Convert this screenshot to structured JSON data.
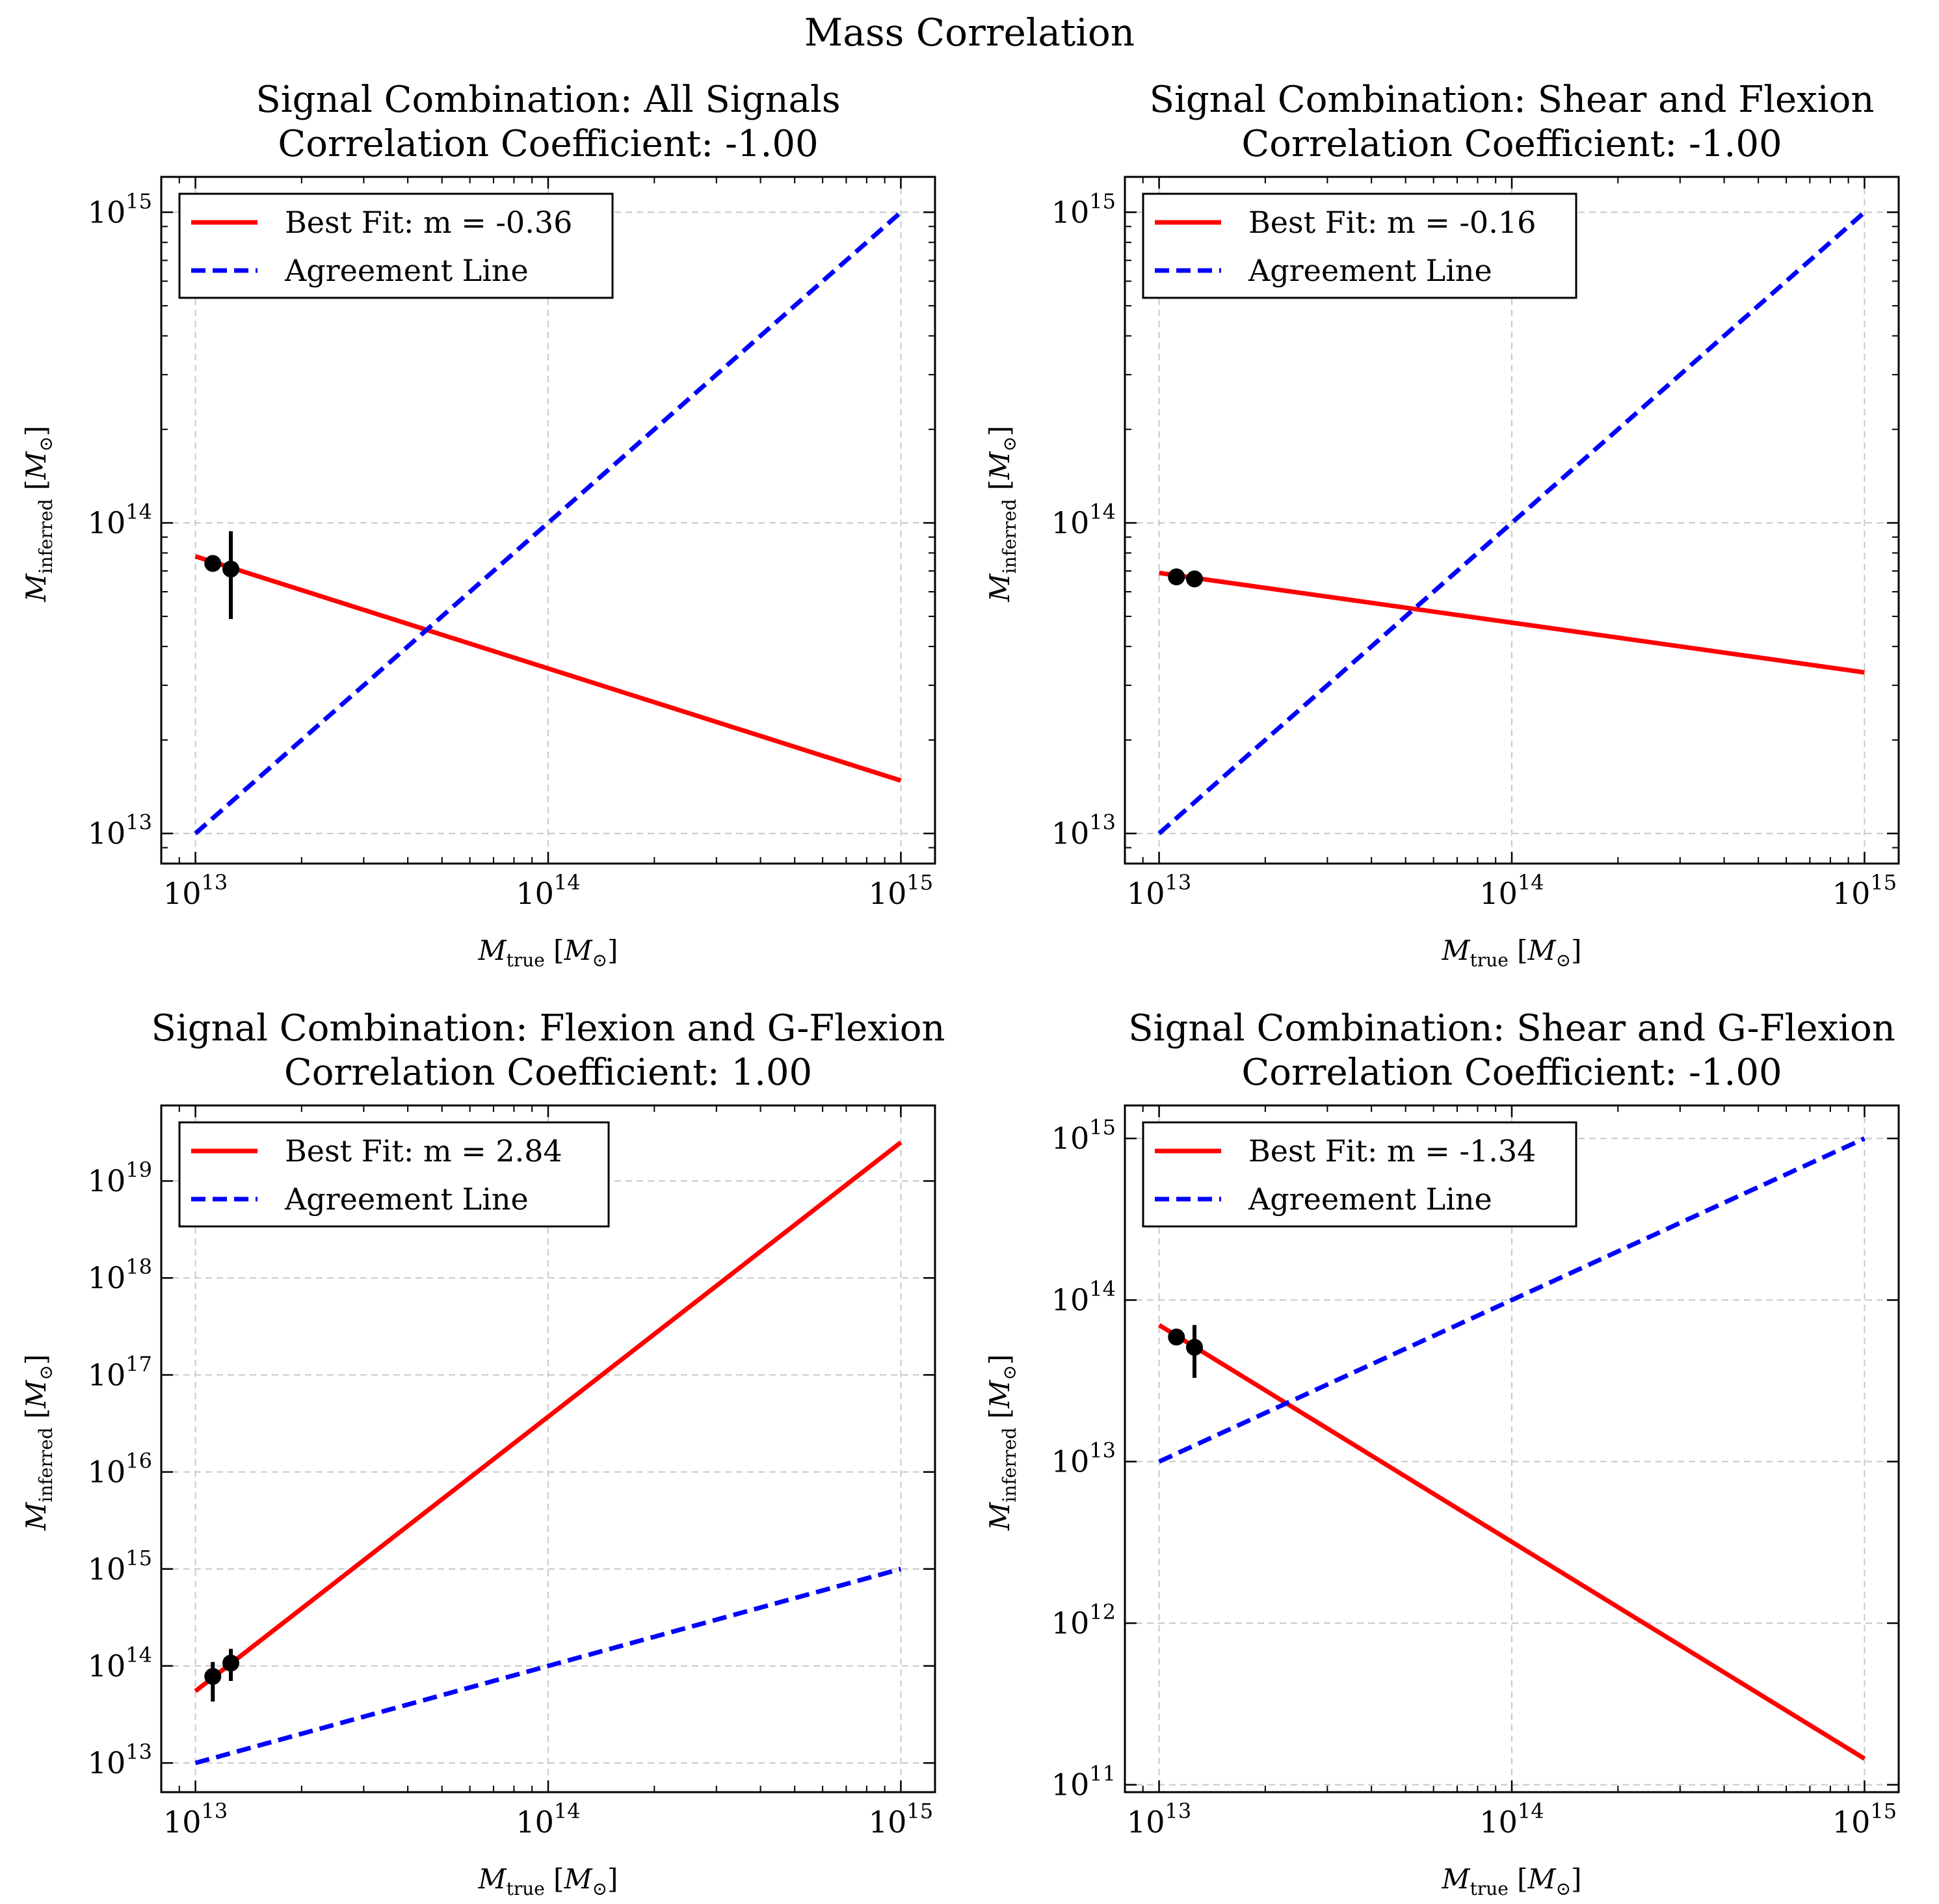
{
  "figure": {
    "suptitle": "Mass Correlation"
  },
  "chart_data": [
    {
      "type": "scatter",
      "title_line1": "Signal Combination: All Signals",
      "title_line2": "Correlation Coefficient: -1.00",
      "xlabel_sym": "M",
      "xlabel_sub": "true",
      "ylabel_sym": "M",
      "ylabel_sub": "inferred",
      "unit_open": " [",
      "unit_sym": "M",
      "unit_sub": "⊙",
      "unit_close": "]",
      "xscale": "log",
      "yscale": "log",
      "xlim": [
        8000000000000.0,
        1250000000000000.0
      ],
      "ylim": [
        8000000000000.0,
        1300000000000000.0
      ],
      "xticks": [
        13,
        14,
        15
      ],
      "yticks": [
        13,
        14,
        15
      ],
      "grid": true,
      "legend_loc": "upper left",
      "series": [
        {
          "name": "Best Fit: m = -0.36",
          "kind": "line",
          "color": "#ff0000",
          "style": "solid",
          "x": [
            10000000000000.0,
            1000000000000000.0
          ],
          "y": [
            78000000000000.0,
            14800000000000.0
          ]
        },
        {
          "name": "Agreement Line",
          "kind": "line",
          "color": "#0000ff",
          "style": "dashed",
          "x": [
            10000000000000.0,
            1000000000000000.0
          ],
          "y": [
            10000000000000.0,
            1000000000000000.0
          ]
        }
      ],
      "points": [
        {
          "x": 11200000000000.0,
          "y": 74000000000000.0,
          "yerr_low": 74000000000000.0,
          "yerr_high": 74000000000000.0
        },
        {
          "x": 12600000000000.0,
          "y": 71000000000000.0,
          "yerr_low": 49000000000000.0,
          "yerr_high": 94000000000000.0
        }
      ]
    },
    {
      "type": "scatter",
      "title_line1": "Signal Combination: Shear and Flexion",
      "title_line2": "Correlation Coefficient: -1.00",
      "xlabel_sym": "M",
      "xlabel_sub": "true",
      "ylabel_sym": "M",
      "ylabel_sub": "inferred",
      "unit_open": " [",
      "unit_sym": "M",
      "unit_sub": "⊙",
      "unit_close": "]",
      "xscale": "log",
      "yscale": "log",
      "xlim": [
        8000000000000.0,
        1250000000000000.0
      ],
      "ylim": [
        8000000000000.0,
        1300000000000000.0
      ],
      "xticks": [
        13,
        14,
        15
      ],
      "yticks": [
        13,
        14,
        15
      ],
      "grid": true,
      "legend_loc": "upper left",
      "series": [
        {
          "name": "Best Fit: m = -0.16",
          "kind": "line",
          "color": "#ff0000",
          "style": "solid",
          "x": [
            10000000000000.0,
            1000000000000000.0
          ],
          "y": [
            69000000000000.0,
            33000000000000.0
          ]
        },
        {
          "name": "Agreement Line",
          "kind": "line",
          "color": "#0000ff",
          "style": "dashed",
          "x": [
            10000000000000.0,
            1000000000000000.0
          ],
          "y": [
            10000000000000.0,
            1000000000000000.0
          ]
        }
      ],
      "points": [
        {
          "x": 11200000000000.0,
          "y": 67000000000000.0,
          "yerr_low": 67000000000000.0,
          "yerr_high": 67000000000000.0
        },
        {
          "x": 12600000000000.0,
          "y": 66000000000000.0,
          "yerr_low": 66000000000000.0,
          "yerr_high": 66000000000000.0
        }
      ]
    },
    {
      "type": "scatter",
      "title_line1": "Signal Combination: Flexion and G-Flexion",
      "title_line2": "Correlation Coefficient: 1.00",
      "xlabel_sym": "M",
      "xlabel_sub": "true",
      "ylabel_sym": "M",
      "ylabel_sub": "inferred",
      "unit_open": " [",
      "unit_sym": "M",
      "unit_sub": "⊙",
      "unit_close": "]",
      "xscale": "log",
      "yscale": "log",
      "xlim": [
        8000000000000.0,
        1250000000000000.0
      ],
      "ylim": [
        5000000000000.0,
        6e+19
      ],
      "xticks": [
        13,
        14,
        15
      ],
      "yticks": [
        13,
        14,
        15,
        16,
        17,
        18,
        19
      ],
      "grid": true,
      "legend_loc": "upper left",
      "series": [
        {
          "name": "Best Fit: m = 2.84",
          "kind": "line",
          "color": "#ff0000",
          "style": "solid",
          "x": [
            10000000000000.0,
            1000000000000000.0
          ],
          "y": [
            55000000000000.0,
            2.5e+19
          ]
        },
        {
          "name": "Agreement Line",
          "kind": "line",
          "color": "#0000ff",
          "style": "dashed",
          "x": [
            10000000000000.0,
            1000000000000000.0
          ],
          "y": [
            10000000000000.0,
            1000000000000000.0
          ]
        }
      ],
      "points": [
        {
          "x": 11200000000000.0,
          "y": 78000000000000.0,
          "yerr_low": 43000000000000.0,
          "yerr_high": 110000000000000.0
        },
        {
          "x": 12600000000000.0,
          "y": 107000000000000.0,
          "yerr_low": 70000000000000.0,
          "yerr_high": 150000000000000.0
        }
      ]
    },
    {
      "type": "scatter",
      "title_line1": "Signal Combination: Shear and G-Flexion",
      "title_line2": "Correlation Coefficient: -1.00",
      "xlabel_sym": "M",
      "xlabel_sub": "true",
      "ylabel_sym": "M",
      "ylabel_sub": "inferred",
      "unit_open": " [",
      "unit_sym": "M",
      "unit_sub": "⊙",
      "unit_close": "]",
      "xscale": "log",
      "yscale": "log",
      "xlim": [
        8000000000000.0,
        1250000000000000.0
      ],
      "ylim": [
        90000000000.0,
        1600000000000000.0
      ],
      "xticks": [
        13,
        14,
        15
      ],
      "yticks": [
        11,
        12,
        13,
        14,
        15
      ],
      "grid": true,
      "legend_loc": "upper left",
      "series": [
        {
          "name": "Best Fit: m = -1.34",
          "kind": "line",
          "color": "#ff0000",
          "style": "solid",
          "x": [
            10000000000000.0,
            1000000000000000.0
          ],
          "y": [
            70000000000000.0,
            145000000000.0
          ]
        },
        {
          "name": "Agreement Line",
          "kind": "line",
          "color": "#0000ff",
          "style": "dashed",
          "x": [
            10000000000000.0,
            1000000000000000.0
          ],
          "y": [
            10000000000000.0,
            1000000000000000.0
          ]
        }
      ],
      "points": [
        {
          "x": 11200000000000.0,
          "y": 59000000000000.0,
          "yerr_low": 59000000000000.0,
          "yerr_high": 59000000000000.0
        },
        {
          "x": 12600000000000.0,
          "y": 51000000000000.0,
          "yerr_low": 33000000000000.0,
          "yerr_high": 70000000000000.0
        }
      ]
    }
  ]
}
